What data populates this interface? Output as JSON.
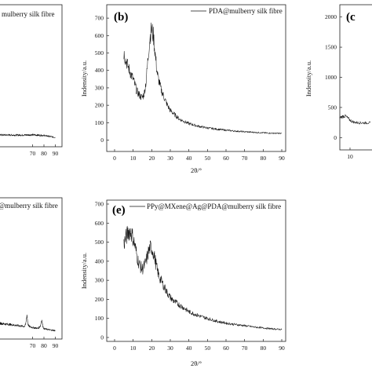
{
  "chart_data": [
    {
      "id": "a",
      "type": "line",
      "panel_label": "",
      "legend": "mulberry silk fibre",
      "xlabel": "",
      "ylabel": "",
      "xlim": [
        0,
        100
      ],
      "ylim": [
        0,
        2000
      ],
      "xticks": [
        70,
        80,
        90
      ],
      "yticks": [],
      "series": [
        {
          "x": [
            0,
            10,
            20,
            30,
            40,
            50,
            60,
            70,
            80,
            90
          ],
          "y": [
            170,
            166,
            162,
            160,
            158,
            157,
            156,
            160,
            150,
            120
          ]
        }
      ]
    },
    {
      "id": "b",
      "type": "line",
      "panel_label": "(b)",
      "legend": "PDA@mulberry silk fibre",
      "xlabel": "2θ/°",
      "ylabel": "Indensity/a.u.",
      "xlim": [
        0,
        90
      ],
      "ylim": [
        -20,
        750
      ],
      "xticks": [
        0,
        10,
        20,
        30,
        40,
        50,
        60,
        70,
        80,
        90
      ],
      "yticks": [
        0,
        100,
        200,
        300,
        400,
        500,
        600,
        700
      ],
      "series": [
        {
          "x": [
            5,
            6,
            8,
            10,
            12,
            14,
            15,
            16,
            17,
            18,
            19,
            20,
            21,
            22,
            23,
            25,
            28,
            30,
            35,
            40,
            45,
            50,
            55,
            60,
            65,
            70,
            75,
            80,
            85,
            90
          ],
          "y": [
            500,
            460,
            400,
            350,
            280,
            250,
            245,
            270,
            340,
            470,
            590,
            640,
            590,
            480,
            380,
            290,
            210,
            170,
            120,
            95,
            80,
            70,
            63,
            57,
            52,
            48,
            45,
            42,
            40,
            38
          ]
        }
      ]
    },
    {
      "id": "c",
      "type": "line",
      "panel_label": "(c",
      "legend": "",
      "xlabel": "",
      "ylabel": "Indensity/a.u.",
      "xlim": [
        0,
        20
      ],
      "ylim": [
        -100,
        2100
      ],
      "xticks": [
        10
      ],
      "yticks": [
        0,
        500,
        1000,
        1500,
        2000
      ],
      "series": [
        {
          "x": [
            5,
            6,
            7,
            8,
            9,
            10,
            11,
            12,
            13,
            14,
            15,
            16,
            18,
            20
          ],
          "y": [
            330,
            345,
            360,
            350,
            320,
            290,
            270,
            255,
            250,
            248,
            246,
            245,
            244,
            243
          ]
        }
      ]
    },
    {
      "id": "d",
      "type": "line",
      "panel_label": "",
      "legend": "@mulberry silk fibre",
      "xlabel": "",
      "ylabel": "",
      "xlim": [
        0,
        100
      ],
      "ylim": [
        0,
        700
      ],
      "xticks": [
        70,
        80,
        90
      ],
      "yticks": [],
      "series": [
        {
          "x": [
            40,
            50,
            60,
            63,
            64,
            65,
            66,
            67,
            70,
            75,
            77,
            78,
            79,
            80,
            85,
            90
          ],
          "y": [
            75,
            68,
            60,
            58,
            70,
            120,
            70,
            58,
            52,
            48,
            62,
            95,
            60,
            46,
            40,
            36
          ]
        }
      ]
    },
    {
      "id": "e",
      "type": "line",
      "panel_label": "(e)",
      "legend": "PPy@MXene@Ag@PDA@mulberry silk fibre",
      "xlabel": "2θ/°",
      "ylabel": "Indensity/a.u.",
      "xlim": [
        0,
        90
      ],
      "ylim": [
        0,
        700
      ],
      "xticks": [
        0,
        10,
        20,
        30,
        40,
        50,
        60,
        70,
        80,
        90
      ],
      "yticks": [
        0,
        100,
        200,
        300,
        400,
        500,
        600,
        700
      ],
      "series": [
        {
          "x": [
            5,
            6,
            7,
            8,
            9,
            10,
            11,
            12,
            13,
            14,
            15,
            16,
            17,
            18,
            19,
            20,
            21,
            22,
            23,
            24,
            25,
            26,
            27,
            28,
            30,
            32,
            35,
            38,
            40,
            45,
            50,
            55,
            60,
            65,
            70,
            75,
            80,
            85,
            90
          ],
          "y": [
            490,
            520,
            545,
            560,
            550,
            520,
            480,
            430,
            390,
            370,
            360,
            375,
            400,
            440,
            470,
            470,
            440,
            400,
            350,
            320,
            300,
            280,
            260,
            240,
            210,
            190,
            170,
            150,
            135,
            115,
            100,
            85,
            75,
            68,
            62,
            55,
            50,
            45,
            42
          ]
        }
      ]
    }
  ]
}
